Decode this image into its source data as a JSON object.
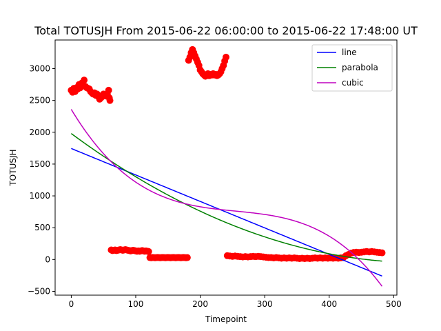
{
  "chart_data": {
    "type": "scatter",
    "title": "Total TOTUSJH From 2015-06-22 06:00:00 to 2015-06-22 17:48:00 UT",
    "xlabel": "Timepoint",
    "ylabel": "TOTUSJH",
    "xlim": [
      -25,
      505
    ],
    "ylim": [
      -560,
      3450
    ],
    "xticks": [
      0,
      100,
      200,
      300,
      400,
      500
    ],
    "yticks": [
      -500,
      0,
      500,
      1000,
      1500,
      2000,
      2500,
      3000
    ],
    "grid": false,
    "legend_position": "top-right",
    "scatter": {
      "color": "#ff0000",
      "points": [
        [
          0,
          2660
        ],
        [
          2,
          2630
        ],
        [
          4,
          2690
        ],
        [
          6,
          2640
        ],
        [
          8,
          2700
        ],
        [
          10,
          2680
        ],
        [
          12,
          2750
        ],
        [
          14,
          2700
        ],
        [
          16,
          2770
        ],
        [
          18,
          2740
        ],
        [
          20,
          2820
        ],
        [
          22,
          2720
        ],
        [
          24,
          2700
        ],
        [
          26,
          2690
        ],
        [
          28,
          2680
        ],
        [
          30,
          2640
        ],
        [
          32,
          2620
        ],
        [
          34,
          2600
        ],
        [
          36,
          2620
        ],
        [
          38,
          2580
        ],
        [
          40,
          2600
        ],
        [
          42,
          2560
        ],
        [
          44,
          2520
        ],
        [
          46,
          2540
        ],
        [
          48,
          2560
        ],
        [
          50,
          2600
        ],
        [
          52,
          2580
        ],
        [
          54,
          2570
        ],
        [
          56,
          2600
        ],
        [
          58,
          2660
        ],
        [
          59,
          2540
        ],
        [
          60,
          2500
        ],
        [
          62,
          150
        ],
        [
          64,
          140
        ],
        [
          66,
          145
        ],
        [
          68,
          150
        ],
        [
          70,
          140
        ],
        [
          72,
          145
        ],
        [
          74,
          150
        ],
        [
          76,
          155
        ],
        [
          78,
          150
        ],
        [
          80,
          145
        ],
        [
          82,
          150
        ],
        [
          84,
          155
        ],
        [
          86,
          150
        ],
        [
          88,
          145
        ],
        [
          90,
          140
        ],
        [
          92,
          135
        ],
        [
          94,
          140
        ],
        [
          96,
          145
        ],
        [
          98,
          140
        ],
        [
          100,
          135
        ],
        [
          102,
          130
        ],
        [
          104,
          135
        ],
        [
          106,
          130
        ],
        [
          108,
          135
        ],
        [
          110,
          140
        ],
        [
          112,
          135
        ],
        [
          114,
          130
        ],
        [
          116,
          135
        ],
        [
          118,
          130
        ],
        [
          120,
          125
        ],
        [
          122,
          30
        ],
        [
          124,
          28
        ],
        [
          126,
          32
        ],
        [
          128,
          30
        ],
        [
          130,
          28
        ],
        [
          132,
          30
        ],
        [
          134,
          32
        ],
        [
          136,
          30
        ],
        [
          138,
          28
        ],
        [
          140,
          30
        ],
        [
          142,
          32
        ],
        [
          144,
          30
        ],
        [
          146,
          28
        ],
        [
          148,
          30
        ],
        [
          150,
          32
        ],
        [
          152,
          30
        ],
        [
          154,
          28
        ],
        [
          156,
          30
        ],
        [
          158,
          32
        ],
        [
          160,
          30
        ],
        [
          162,
          28
        ],
        [
          164,
          30
        ],
        [
          166,
          32
        ],
        [
          168,
          30
        ],
        [
          170,
          28
        ],
        [
          172,
          30
        ],
        [
          174,
          32
        ],
        [
          176,
          30
        ],
        [
          178,
          28
        ],
        [
          180,
          30
        ],
        [
          182,
          3130
        ],
        [
          184,
          3180
        ],
        [
          186,
          3250
        ],
        [
          188,
          3300
        ],
        [
          190,
          3250
        ],
        [
          192,
          3200
        ],
        [
          194,
          3150
        ],
        [
          196,
          3100
        ],
        [
          198,
          3050
        ],
        [
          200,
          2980
        ],
        [
          202,
          2950
        ],
        [
          204,
          2920
        ],
        [
          206,
          2900
        ],
        [
          208,
          2880
        ],
        [
          210,
          2900
        ],
        [
          212,
          2920
        ],
        [
          214,
          2890
        ],
        [
          216,
          2910
        ],
        [
          218,
          2900
        ],
        [
          220,
          2920
        ],
        [
          222,
          2900
        ],
        [
          224,
          2910
        ],
        [
          226,
          2890
        ],
        [
          228,
          2900
        ],
        [
          230,
          2920
        ],
        [
          232,
          2950
        ],
        [
          234,
          3000
        ],
        [
          236,
          3050
        ],
        [
          238,
          3120
        ],
        [
          240,
          3180
        ],
        [
          242,
          60
        ],
        [
          246,
          55
        ],
        [
          250,
          50
        ],
        [
          254,
          55
        ],
        [
          258,
          50
        ],
        [
          262,
          45
        ],
        [
          266,
          40
        ],
        [
          270,
          45
        ],
        [
          274,
          40
        ],
        [
          278,
          45
        ],
        [
          282,
          50
        ],
        [
          286,
          45
        ],
        [
          290,
          50
        ],
        [
          294,
          45
        ],
        [
          298,
          40
        ],
        [
          302,
          35
        ],
        [
          306,
          30
        ],
        [
          310,
          30
        ],
        [
          314,
          25
        ],
        [
          318,
          30
        ],
        [
          322,
          25
        ],
        [
          326,
          20
        ],
        [
          330,
          25
        ],
        [
          334,
          20
        ],
        [
          338,
          25
        ],
        [
          342,
          20
        ],
        [
          346,
          25
        ],
        [
          350,
          20
        ],
        [
          354,
          15
        ],
        [
          358,
          20
        ],
        [
          362,
          15
        ],
        [
          366,
          20
        ],
        [
          370,
          15
        ],
        [
          374,
          20
        ],
        [
          378,
          25
        ],
        [
          382,
          20
        ],
        [
          386,
          25
        ],
        [
          390,
          20
        ],
        [
          394,
          25
        ],
        [
          398,
          20
        ],
        [
          402,
          25
        ],
        [
          406,
          20
        ],
        [
          410,
          25
        ],
        [
          414,
          20
        ],
        [
          418,
          25
        ],
        [
          422,
          30
        ],
        [
          426,
          60
        ],
        [
          430,
          80
        ],
        [
          434,
          100
        ],
        [
          438,
          110
        ],
        [
          442,
          115
        ],
        [
          446,
          110
        ],
        [
          450,
          115
        ],
        [
          454,
          120
        ],
        [
          458,
          125
        ],
        [
          462,
          120
        ],
        [
          466,
          125
        ],
        [
          470,
          120
        ],
        [
          474,
          115
        ],
        [
          478,
          110
        ],
        [
          482,
          105
        ]
      ]
    },
    "series": [
      {
        "name": "line",
        "color": "#0000ff",
        "x_range": [
          0,
          482
        ],
        "coeffs": [
          1745,
          -4.16
        ]
      },
      {
        "name": "parabola",
        "color": "#008000",
        "x_range": [
          0,
          482
        ],
        "coeffs": [
          1980,
          -7.48,
          0.00689
        ]
      },
      {
        "name": "cubic",
        "color": "#bf00bf",
        "x_range": [
          0,
          482
        ],
        "coeffs": [
          2360,
          -16.84,
          0.0622,
          -8.14e-05
        ]
      }
    ]
  }
}
